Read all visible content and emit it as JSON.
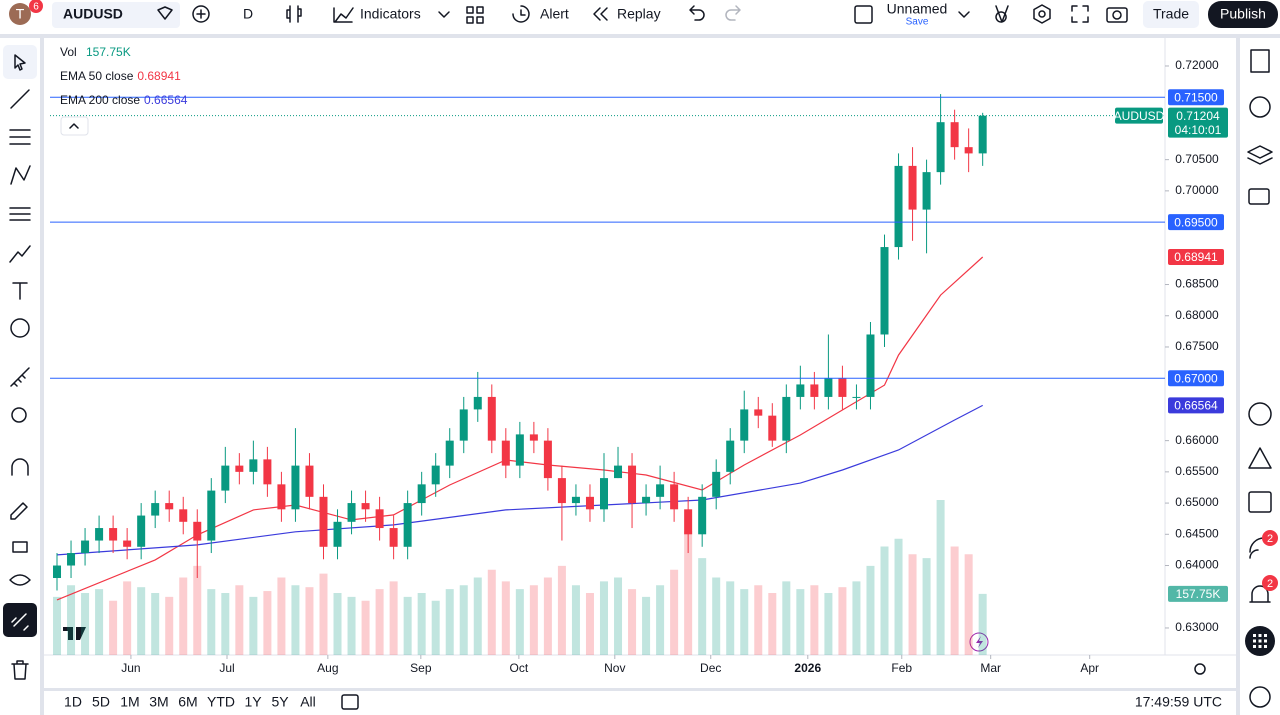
{
  "toolbar": {
    "badge": "6",
    "symbol": "AUDUSD",
    "interval": "D",
    "indicators": "Indicators",
    "alert": "Alert",
    "replay": "Replay",
    "layout_name": "Unnamed",
    "save": "Save",
    "trade": "Trade",
    "publish": "Publish"
  },
  "chart_data": {
    "type": "candlestick",
    "symbol": "AUDUSD",
    "up_color": "#089981",
    "down_color": "#f23645",
    "open": [
      0.638,
      0.64,
      0.642,
      0.644,
      0.646,
      0.644,
      0.643,
      0.648,
      0.65,
      0.649,
      0.647,
      0.644,
      0.652,
      0.656,
      0.655,
      0.657,
      0.653,
      0.649,
      0.656,
      0.651,
      0.643,
      0.647,
      0.65,
      0.649,
      0.646,
      0.643,
      0.65,
      0.653,
      0.656,
      0.66,
      0.665,
      0.667,
      0.66,
      0.656,
      0.661,
      0.66,
      0.654,
      0.65,
      0.651,
      0.649,
      0.654,
      0.656,
      0.65,
      0.651,
      0.653,
      0.649,
      0.645,
      0.651,
      0.655,
      0.66,
      0.665,
      0.664,
      0.66,
      0.667,
      0.669,
      0.667,
      0.67,
      0.667,
      0.667,
      0.677,
      0.691,
      0.704,
      0.697,
      0.703,
      0.711,
      0.707,
      0.706
    ],
    "high": [
      0.642,
      0.644,
      0.646,
      0.648,
      0.648,
      0.646,
      0.65,
      0.652,
      0.652,
      0.651,
      0.649,
      0.654,
      0.659,
      0.658,
      0.66,
      0.659,
      0.655,
      0.662,
      0.658,
      0.653,
      0.649,
      0.652,
      0.652,
      0.651,
      0.648,
      0.652,
      0.655,
      0.658,
      0.662,
      0.667,
      0.671,
      0.669,
      0.662,
      0.663,
      0.663,
      0.662,
      0.656,
      0.653,
      0.653,
      0.658,
      0.659,
      0.658,
      0.653,
      0.656,
      0.655,
      0.651,
      0.653,
      0.657,
      0.662,
      0.668,
      0.667,
      0.666,
      0.669,
      0.672,
      0.671,
      0.677,
      0.672,
      0.669,
      0.679,
      0.693,
      0.706,
      0.707,
      0.705,
      0.7155,
      0.713,
      0.71,
      0.7125
    ],
    "low": [
      0.636,
      0.638,
      0.64,
      0.642,
      0.642,
      0.641,
      0.641,
      0.646,
      0.647,
      0.645,
      0.638,
      0.642,
      0.65,
      0.653,
      0.653,
      0.651,
      0.647,
      0.647,
      0.649,
      0.641,
      0.641,
      0.645,
      0.647,
      0.644,
      0.641,
      0.641,
      0.648,
      0.651,
      0.654,
      0.658,
      0.663,
      0.658,
      0.654,
      0.654,
      0.658,
      0.652,
      0.644,
      0.648,
      0.647,
      0.647,
      0.654,
      0.646,
      0.648,
      0.649,
      0.647,
      0.642,
      0.643,
      0.649,
      0.653,
      0.658,
      0.662,
      0.659,
      0.658,
      0.665,
      0.665,
      0.665,
      0.665,
      0.665,
      0.665,
      0.675,
      0.689,
      0.692,
      0.69,
      0.701,
      0.705,
      0.703,
      0.704
    ],
    "close": [
      0.64,
      0.642,
      0.644,
      0.646,
      0.644,
      0.643,
      0.648,
      0.65,
      0.649,
      0.647,
      0.644,
      0.652,
      0.656,
      0.655,
      0.657,
      0.653,
      0.649,
      0.656,
      0.651,
      0.643,
      0.647,
      0.65,
      0.649,
      0.646,
      0.643,
      0.65,
      0.653,
      0.656,
      0.66,
      0.665,
      0.667,
      0.66,
      0.656,
      0.661,
      0.66,
      0.654,
      0.65,
      0.651,
      0.649,
      0.654,
      0.656,
      0.65,
      0.651,
      0.653,
      0.649,
      0.645,
      0.651,
      0.655,
      0.66,
      0.665,
      0.664,
      0.66,
      0.667,
      0.669,
      0.667,
      0.67,
      0.667,
      0.667,
      0.677,
      0.691,
      0.704,
      0.697,
      0.703,
      0.711,
      0.707,
      0.706,
      0.71204
    ],
    "price_label": "0.71204",
    "countdown": "04:10:01",
    "volume": {
      "name": "Vol",
      "values": [
        150,
        180,
        160,
        170,
        140,
        190,
        175,
        160,
        150,
        200,
        230,
        170,
        160,
        180,
        150,
        165,
        200,
        180,
        175,
        210,
        160,
        150,
        140,
        170,
        190,
        150,
        160,
        140,
        170,
        180,
        200,
        220,
        190,
        170,
        180,
        200,
        230,
        180,
        160,
        190,
        200,
        170,
        150,
        180,
        220,
        320,
        250,
        200,
        190,
        170,
        180,
        160,
        190,
        170,
        180,
        160,
        175,
        190,
        230,
        280,
        300,
        260,
        250,
        400,
        280,
        260,
        157.75
      ],
      "ylim": [
        0,
        400
      ],
      "last_label": "157.75K",
      "color": "#089981"
    },
    "series": [
      {
        "name": "EMA 50 close",
        "color": "#f23645",
        "x": [
          0,
          7,
          10,
          14,
          17,
          21,
          24,
          28,
          32,
          35,
          39,
          42,
          46,
          49,
          53,
          56,
          59,
          60,
          63,
          66
        ],
        "values": [
          0.6345,
          0.6409,
          0.6449,
          0.6489,
          0.6497,
          0.6473,
          0.6481,
          0.6529,
          0.6569,
          0.6561,
          0.6553,
          0.6545,
          0.6521,
          0.6561,
          0.6609,
          0.6649,
          0.6689,
          0.6737,
          0.6833,
          0.68941
        ],
        "last_label": "0.68941"
      },
      {
        "name": "EMA 200 close",
        "color": "#3b3bdc",
        "x": [
          0,
          10,
          17,
          24,
          32,
          39,
          46,
          53,
          56,
          60,
          64,
          66
        ],
        "values": [
          0.6417,
          0.6433,
          0.6454,
          0.6465,
          0.6489,
          0.6497,
          0.6505,
          0.6532,
          0.6553,
          0.6585,
          0.6633,
          0.66564
        ],
        "last_label": "0.66564"
      }
    ],
    "hlines": [
      {
        "value": 0.715,
        "label": "0.71500"
      },
      {
        "value": 0.695,
        "label": "0.69500"
      },
      {
        "value": 0.67,
        "label": "0.67000"
      }
    ],
    "hline_color": "#2962ff",
    "xlim": [
      -0.5,
      79
    ],
    "xticks": [
      {
        "value": 5.27,
        "label": "Jun"
      },
      {
        "value": 12.12,
        "label": "Jul"
      },
      {
        "value": 19.31,
        "label": "Aug"
      },
      {
        "value": 25.94,
        "label": "Sep"
      },
      {
        "value": 32.93,
        "label": "Oct"
      },
      {
        "value": 39.77,
        "label": "Nov"
      },
      {
        "value": 46.61,
        "label": "Dec"
      },
      {
        "value": 53.53,
        "label": "2026"
      },
      {
        "value": 60.23,
        "label": "Feb"
      },
      {
        "value": 66.57,
        "label": "Mar"
      },
      {
        "value": 73.63,
        "label": "Apr"
      }
    ],
    "ylim": [
      0.62567,
      0.72336
    ],
    "yticks": [
      {
        "value": 0.72,
        "label": "0.72000"
      },
      {
        "value": 0.705,
        "label": "0.70500"
      },
      {
        "value": 0.7,
        "label": "0.70000"
      },
      {
        "value": 0.685,
        "label": "0.68500"
      },
      {
        "value": 0.68,
        "label": "0.68000"
      },
      {
        "value": 0.675,
        "label": "0.67500"
      },
      {
        "value": 0.66,
        "label": "0.66000"
      },
      {
        "value": 0.655,
        "label": "0.65500"
      },
      {
        "value": 0.65,
        "label": "0.65000"
      },
      {
        "value": 0.645,
        "label": "0.64500"
      },
      {
        "value": 0.64,
        "label": "0.64000"
      },
      {
        "value": 0.63,
        "label": "0.63000"
      }
    ]
  },
  "sidebar": {
    "badges": [
      "2",
      "2"
    ]
  },
  "footer": {
    "ranges": [
      "1D",
      "5D",
      "1M",
      "3M",
      "6M",
      "YTD",
      "1Y",
      "5Y",
      "All"
    ],
    "clock": "17:49:59 UTC"
  }
}
